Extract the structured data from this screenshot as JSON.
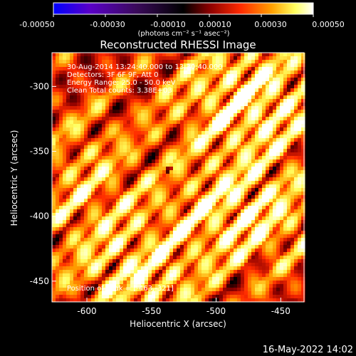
{
  "colorbar": {
    "ticks": [
      "-0.00050",
      "-0.00030",
      "-0.00010",
      "0.00010",
      "0.00030",
      "0.00050"
    ],
    "unit_label": "(photons cm⁻² s⁻¹ asec⁻²)",
    "colors": [
      "#0000ff",
      "#5a00c8",
      "#3a0a5a",
      "#000000",
      "#8a0000",
      "#ff2a00",
      "#ffa000",
      "#ffff60",
      "#ffffff"
    ]
  },
  "chart_data": {
    "type": "heatmap",
    "title": "Reconstructed RHESSI Image",
    "xlabel": "Heliocentric X (arcsec)",
    "ylabel": "Heliocentric Y (arcsec)",
    "xlim": [
      -627,
      -432
    ],
    "ylim": [
      -466,
      -274
    ],
    "x_ticks": [
      "-600",
      "-550",
      "-500",
      "-450"
    ],
    "y_ticks": [
      "-300",
      "-350",
      "-400",
      "-450"
    ],
    "info_lines": [
      "30-Aug-2014 13:24:40.000 to 13:30:40.000",
      "Detectors: 3F 6F 9F, Att 0",
      "Energy Range: 25.0 - 50.0 keV",
      "Clean     Total counts: 3.38E+03"
    ],
    "peak_label": "Position of Peak = [-463,-321]",
    "peak_position": [
      -463,
      -321
    ]
  },
  "footer_date": "16-May-2022 14:02"
}
